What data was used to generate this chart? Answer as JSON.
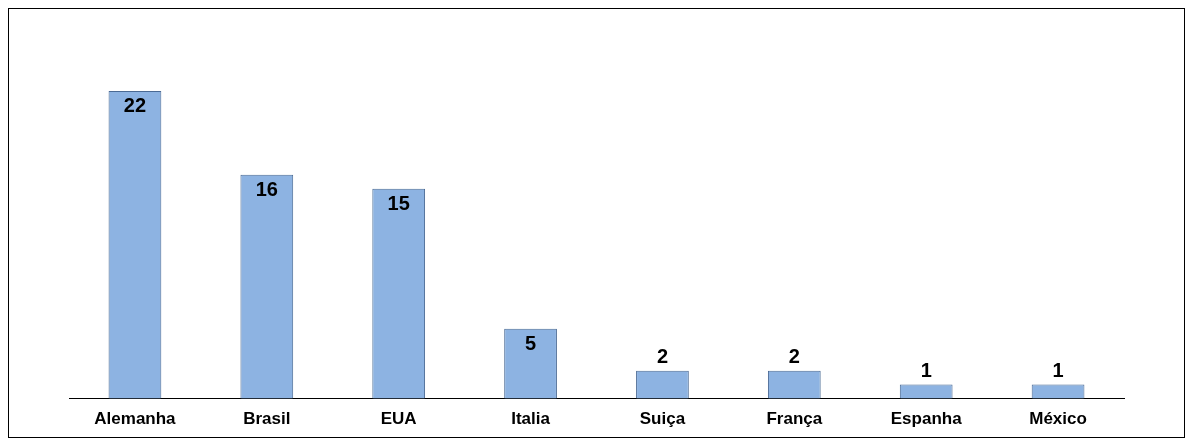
{
  "chart_data": {
    "type": "bar",
    "categories": [
      "Alemanha",
      "Brasil",
      "EUA",
      "Italia",
      "Suiça",
      "França",
      "Espanha",
      "México"
    ],
    "values": [
      22,
      16,
      15,
      5,
      2,
      2,
      1,
      1
    ],
    "color": "#8db3e2",
    "data_labels": true
  }
}
